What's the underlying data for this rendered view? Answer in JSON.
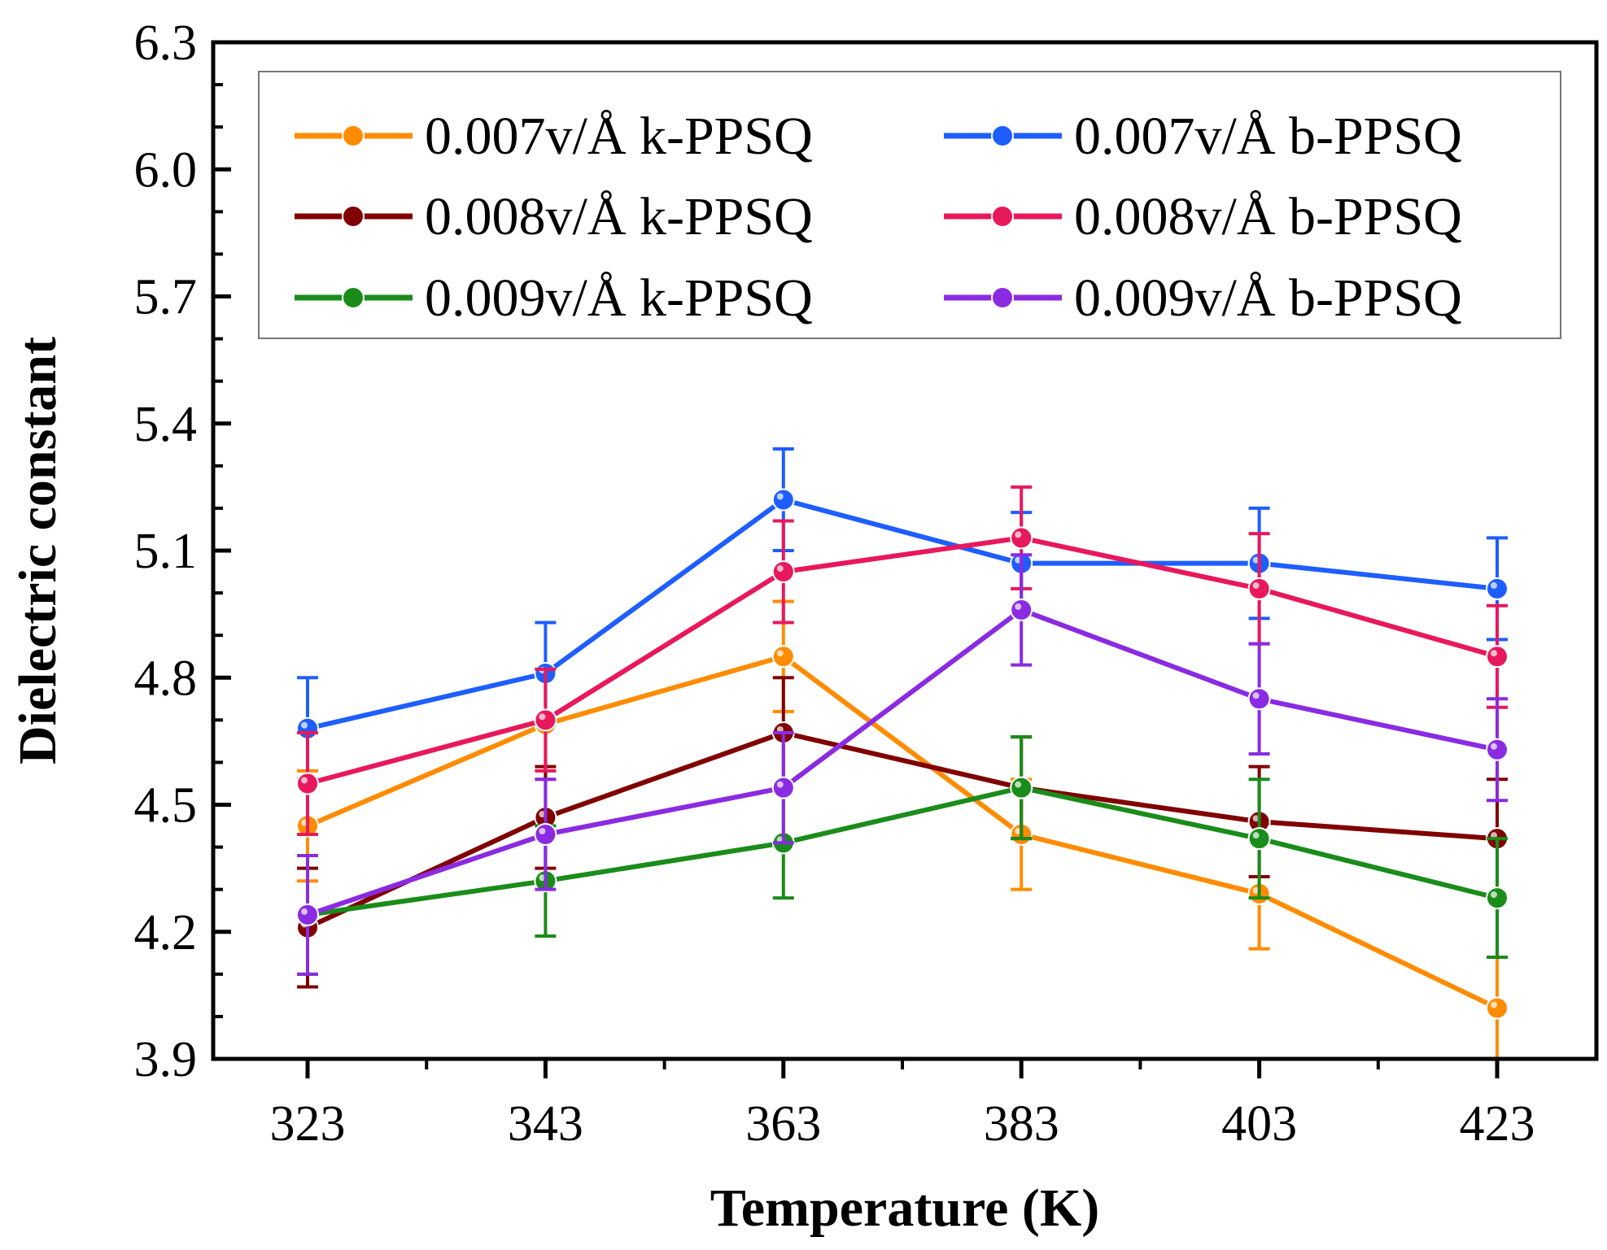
{
  "chart_data": {
    "type": "line",
    "title": "",
    "xlabel": "Temperature (K)",
    "ylabel": "Dielectric constant",
    "x": [
      323,
      343,
      363,
      383,
      403,
      423
    ],
    "x_tick_labels": [
      "323",
      "343",
      "363",
      "383",
      "403",
      "423"
    ],
    "ylim": [
      3.9,
      6.3
    ],
    "y_ticks": [
      3.9,
      4.2,
      4.5,
      4.8,
      5.1,
      5.4,
      5.7,
      6.0,
      6.3
    ],
    "y_tick_labels": [
      "3.9",
      "4.2",
      "4.5",
      "4.8",
      "5.1",
      "5.4",
      "5.7",
      "6.0",
      "6.3"
    ],
    "legend_position": "top",
    "series": [
      {
        "name": "0.007v/Å k-PPSQ",
        "color": "#ff8c00",
        "values": [
          4.45,
          4.69,
          4.85,
          4.43,
          4.29,
          4.02
        ],
        "errors": [
          0.13,
          0.13,
          0.13,
          0.13,
          0.13,
          0.12
        ]
      },
      {
        "name": "0.007v/Å b-PPSQ",
        "color": "#1e5eff",
        "values": [
          4.68,
          4.81,
          5.22,
          5.07,
          5.07,
          5.01
        ],
        "errors": [
          0.12,
          0.12,
          0.12,
          0.12,
          0.13,
          0.12
        ]
      },
      {
        "name": "0.008v/Å k-PPSQ",
        "color": "#800000",
        "values": [
          4.21,
          4.47,
          4.67,
          4.54,
          4.46,
          4.42
        ],
        "errors": [
          0.14,
          0.12,
          0.13,
          0.12,
          0.13,
          0.14
        ]
      },
      {
        "name": "0.008v/Å b-PPSQ",
        "color": "#e8185c",
        "values": [
          4.55,
          4.7,
          5.05,
          5.13,
          5.01,
          4.85
        ],
        "errors": [
          0.12,
          0.12,
          0.12,
          0.12,
          0.13,
          0.12
        ]
      },
      {
        "name": "0.009v/Å k-PPSQ",
        "color": "#1a8c1a",
        "values": [
          4.24,
          4.32,
          4.41,
          4.54,
          4.42,
          4.28
        ],
        "errors": [
          0.14,
          0.13,
          0.13,
          0.12,
          0.14,
          0.14
        ]
      },
      {
        "name": "0.009v/Å b-PPSQ",
        "color": "#8a2be2",
        "values": [
          4.24,
          4.43,
          4.54,
          4.96,
          4.75,
          4.63
        ],
        "errors": [
          0.14,
          0.13,
          0.13,
          0.13,
          0.13,
          0.12
        ]
      }
    ]
  }
}
